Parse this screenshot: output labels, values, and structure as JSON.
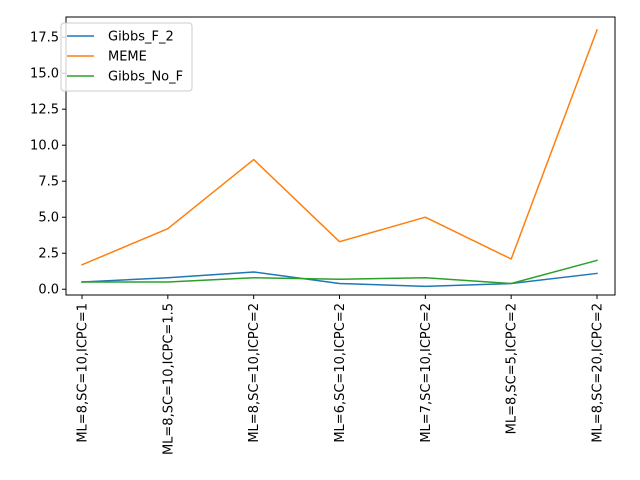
{
  "chart_data": {
    "type": "line",
    "title": "",
    "xlabel": "",
    "ylabel": "",
    "categories": [
      "ML=8,SC=10,ICPC=1",
      "ML=8,SC=10,ICPC=1.5",
      "ML=8,SC=10,ICPC=2",
      "ML=6,SC=10,ICPC=2",
      "ML=7,SC=10,ICPC=2",
      "ML=8,SC=5,ICPC=2",
      "ML=8,SC=20,ICPC=2"
    ],
    "series": [
      {
        "name": "Gibbs_F_2",
        "color": "#1f77b4",
        "values": [
          0.5,
          0.8,
          1.2,
          0.4,
          0.2,
          0.4,
          1.1
        ]
      },
      {
        "name": "MEME",
        "color": "#ff7f0e",
        "values": [
          1.7,
          4.2,
          9.0,
          3.3,
          5.0,
          2.1,
          18.0
        ]
      },
      {
        "name": "Gibbs_No_F",
        "color": "#2ca02c",
        "values": [
          0.5,
          0.5,
          0.8,
          0.7,
          0.8,
          0.4,
          2.0
        ]
      }
    ],
    "ylim": [
      -0.4,
      18.9
    ],
    "yticks": [
      0.0,
      2.5,
      5.0,
      7.5,
      10.0,
      12.5,
      15.0,
      17.5
    ],
    "ytick_labels": [
      "0.0",
      "2.5",
      "5.0",
      "7.5",
      "10.0",
      "12.5",
      "15.0",
      "17.5"
    ],
    "grid": false,
    "legend_position": "top-left"
  }
}
